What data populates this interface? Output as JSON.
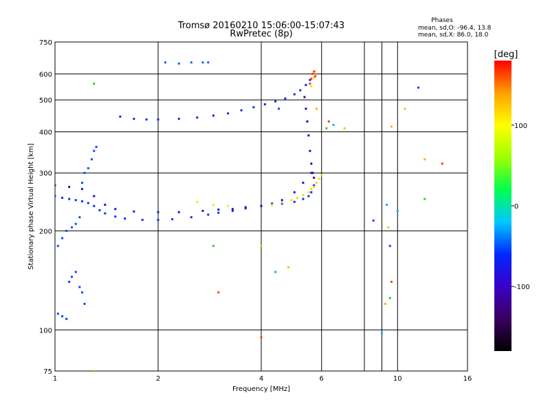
{
  "chart_data": {
    "type": "scatter",
    "title": "Tromsø 20160210 15:06:00-15:07:43",
    "subtitle": "RwPretec (8p)",
    "xlabel": "Frequency [MHz]",
    "ylabel": "Stationary phase Virtual Height [km]",
    "x_scale": "log",
    "y_scale": "log",
    "xlim": [
      1,
      16
    ],
    "ylim": [
      75,
      750
    ],
    "x_ticks": [
      1,
      2,
      4,
      6,
      10,
      16
    ],
    "x_tick_labels": [
      "1",
      "2",
      "4",
      "6",
      "10",
      "16"
    ],
    "x_minor_gridlines": [
      8,
      9
    ],
    "y_ticks": [
      75,
      100,
      200,
      300,
      400,
      500,
      600,
      750
    ],
    "y_tick_labels": [
      "75",
      "100",
      "200",
      "300",
      "400",
      "500",
      "600",
      "750"
    ],
    "grid": true,
    "stats": {
      "heading": "Phases",
      "o_line": "mean, sd,O: -96.4, 13.8",
      "x_line": "mean, sd,X:  86.0, 18.0"
    },
    "colorbar": {
      "label": "[deg]",
      "range": [
        -180,
        180
      ],
      "ticks": [
        100,
        0,
        -100
      ],
      "tick_labels": [
        "100",
        "0",
        "-100"
      ],
      "palette": [
        "#000000",
        "#3a0060",
        "#3c00c8",
        "#0028ff",
        "#00c8ff",
        "#00ff50",
        "#a0ff00",
        "#ffff00",
        "#ffa000",
        "#ff0000"
      ]
    },
    "series": [
      {
        "x": [
          1.0,
          1.05,
          1.1,
          1.15,
          1.2,
          1.25,
          1.3,
          1.35,
          1.4,
          1.5,
          1.6,
          1.8,
          2.0,
          2.2,
          2.5,
          2.8,
          3.0,
          3.3,
          3.6,
          4.0,
          4.3,
          4.6,
          5.0,
          5.3,
          5.5,
          5.6,
          5.7
        ],
        "y": [
          255,
          252,
          250,
          248,
          246,
          243,
          238,
          231,
          226,
          221,
          218,
          216,
          216,
          217,
          220,
          224,
          227,
          230,
          234,
          238,
          240,
          242,
          245,
          250,
          255,
          262,
          275
        ]
      },
      {
        "x": [
          1.0,
          1.1,
          1.2,
          1.3,
          1.4,
          1.5,
          1.7,
          2.0,
          2.3,
          2.7,
          3.0,
          3.3,
          3.6,
          4.0,
          4.3,
          4.6,
          5.0,
          5.3,
          5.6
        ],
        "y": [
          275,
          272,
          268,
          255,
          240,
          233,
          229,
          228,
          228,
          230,
          232,
          233,
          236,
          238,
          242,
          248,
          262,
          280,
          300
        ]
      },
      {
        "x": [
          1.55,
          1.7,
          1.85,
          2.0,
          2.3,
          2.6,
          2.9,
          3.2,
          3.5,
          3.8,
          4.1,
          4.4,
          4.7,
          5.0,
          5.2,
          5.4,
          5.55
        ],
        "y": [
          445,
          438,
          436,
          436,
          438,
          442,
          448,
          455,
          465,
          475,
          485,
          495,
          505,
          520,
          535,
          555,
          575
        ]
      },
      {
        "x": [
          5.35,
          5.4,
          5.45,
          5.5,
          5.55,
          5.6,
          5.65,
          5.7
        ],
        "y": [
          510,
          470,
          430,
          390,
          350,
          320,
          300,
          290
        ]
      },
      {
        "x": [
          4.3,
          4.6,
          4.9,
          5.1,
          5.3,
          5.5,
          5.6,
          5.7,
          5.8,
          5.9,
          6.0,
          5.6,
          5.7,
          5.75
        ],
        "y": [
          240,
          244,
          248,
          252,
          257,
          262,
          268,
          272,
          280,
          288,
          295,
          550,
          585,
          610
        ]
      },
      {
        "x": [
          2.6,
          2.9,
          3.2
        ],
        "y": [
          245,
          240,
          238
        ]
      },
      {
        "x": [
          5.55,
          5.6,
          5.65,
          5.7,
          5.75
        ],
        "y": [
          560,
          580,
          600,
          610,
          590
        ]
      },
      {
        "x": [
          1.02,
          1.05,
          1.08,
          1.12,
          1.15,
          1.18,
          1.2,
          1.22,
          1.25,
          1.28,
          1.3,
          1.32
        ],
        "y": [
          180,
          190,
          200,
          205,
          210,
          220,
          280,
          300,
          310,
          330,
          350,
          360
        ]
      },
      {
        "x": [
          1.02,
          1.05,
          1.08,
          1.1,
          1.12,
          1.15,
          1.18,
          1.2,
          1.22
        ],
        "y": [
          112,
          110,
          108,
          140,
          145,
          150,
          135,
          130,
          120
        ]
      },
      {
        "x": [
          2.1,
          2.3,
          2.5,
          2.7,
          2.8
        ],
        "y": [
          650,
          645,
          650,
          650,
          650
        ]
      },
      {
        "x": [
          1.3,
          1.3,
          4.0,
          4.4,
          4.8,
          4.5,
          5.8,
          6.2,
          6.3,
          6.5,
          7.0,
          8.5,
          9.2,
          9.5,
          9.6,
          10.0,
          10.5,
          11.5,
          12.0,
          12.0,
          13.5,
          9.3,
          9.4,
          9.5,
          9.6,
          2.9,
          3.0,
          9.0,
          4.0
        ],
        "y": [
          75,
          560,
          95,
          150,
          155,
          470,
          470,
          410,
          430,
          420,
          410,
          215,
          120,
          125,
          140,
          230,
          470,
          545,
          330,
          250,
          320,
          240,
          205,
          180,
          415,
          180,
          130,
          98,
          180
        ]
      }
    ]
  }
}
